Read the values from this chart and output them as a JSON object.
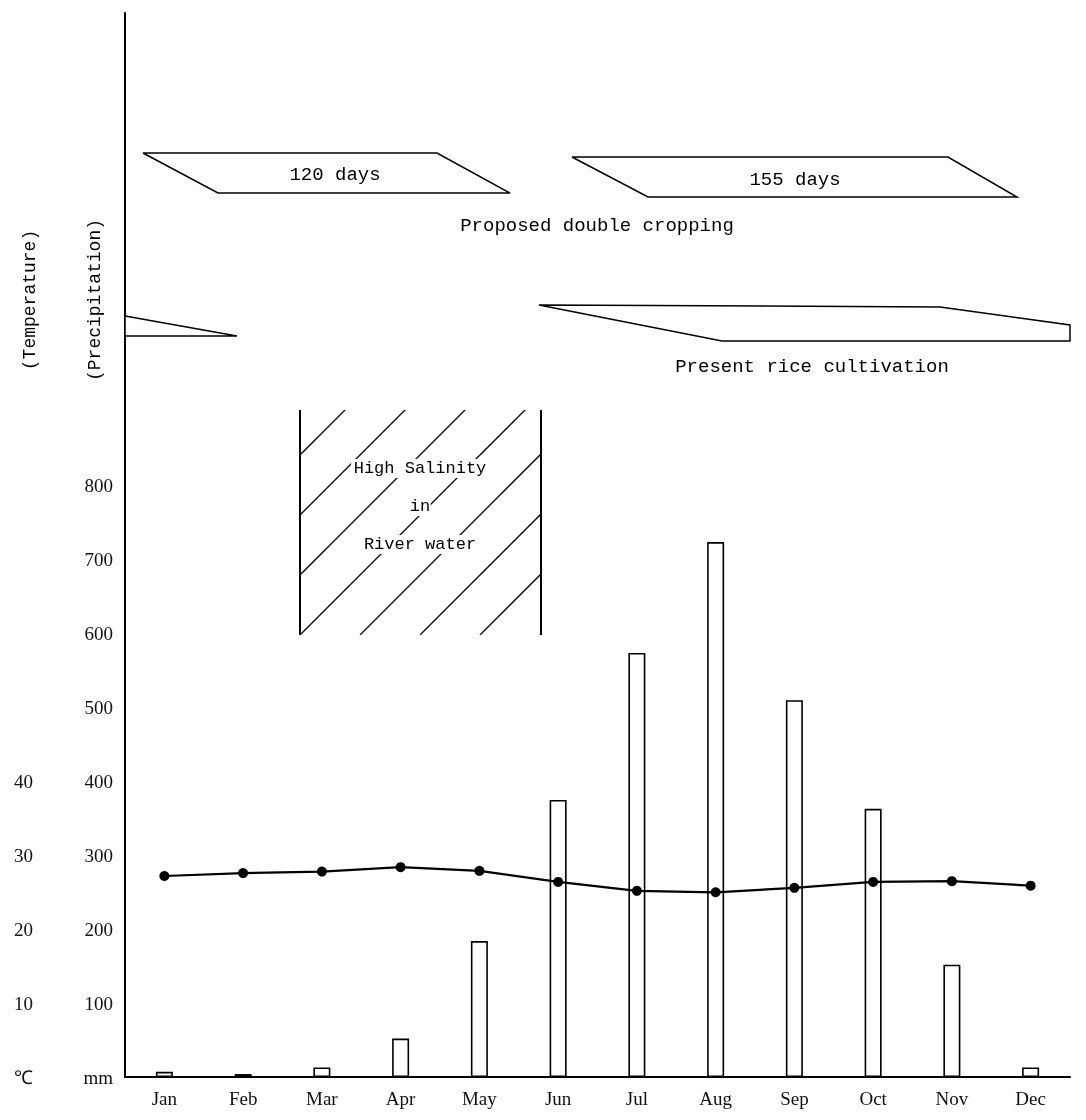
{
  "chart_data": {
    "type": "bar",
    "ylabel": "(Precipitation)",
    "y2label": "(Temperature)",
    "categories": [
      "Jan",
      "Feb",
      "Mar",
      "Apr",
      "May",
      "Jun",
      "Jul",
      "Aug",
      "Sep",
      "Oct",
      "Nov",
      "Dec"
    ],
    "series": [
      {
        "color": "#ffffff",
        "values": [
          7,
          4,
          13,
          52,
          184,
          375,
          574,
          724,
          510,
          363,
          152,
          13
        ]
      },
      {
        "type": "line",
        "axis": "y2",
        "color": "#000000",
        "marker": "circle",
        "values": [
          27.2,
          27.6,
          27.8,
          28.4,
          27.9,
          26.4,
          25.2,
          25.0,
          25.6,
          26.4,
          26.5,
          25.9
        ]
      }
    ],
    "ylim": [
      0,
      1440
    ],
    "yticks": [
      {
        "value": 0,
        "label": "mm"
      },
      100,
      200,
      300,
      400,
      500,
      600,
      700,
      800
    ],
    "y2lim": [
      0,
      144
    ],
    "y2ticks": [
      {
        "value": 0,
        "label": "℃"
      },
      10,
      20,
      30,
      40
    ],
    "grid": false,
    "annotations": [
      "120 days",
      "155 days",
      "Proposed double cropping",
      "Present rice cultivation",
      "High Salinity\nin\nRiver water"
    ]
  }
}
